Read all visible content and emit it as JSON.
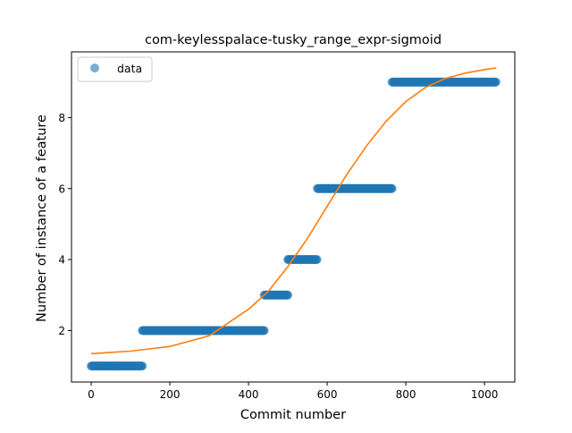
{
  "chart_data": {
    "type": "scatter",
    "title": "com-keylesspalace-tusky_range_expr-sigmoid",
    "xlabel": "Commit number",
    "ylabel": "Number of instance of a feature",
    "xlim": [
      -50,
      1077
    ],
    "ylim": [
      0.55,
      9.85
    ],
    "x_ticks": [
      0,
      200,
      400,
      600,
      800,
      1000
    ],
    "y_ticks": [
      2,
      4,
      6,
      8
    ],
    "grid": false,
    "legend": {
      "placement": "top-left",
      "entries": [
        "data"
      ]
    },
    "series": [
      {
        "name": "data",
        "kind": "scatter",
        "color": "#1f77b4",
        "segments": [
          {
            "x_start": 0,
            "x_end": 130,
            "y": 1
          },
          {
            "x_start": 130,
            "x_end": 440,
            "y": 2
          },
          {
            "x_start": 440,
            "x_end": 500,
            "y": 3
          },
          {
            "x_start": 500,
            "x_end": 575,
            "y": 4
          },
          {
            "x_start": 575,
            "x_end": 765,
            "y": 6
          },
          {
            "x_start": 765,
            "x_end": 1030,
            "y": 9
          }
        ]
      },
      {
        "kind": "line",
        "color": "#ff7f0e",
        "x": [
          0,
          100,
          200,
          300,
          400,
          450,
          500,
          550,
          600,
          650,
          700,
          750,
          800,
          850,
          900,
          950,
          1000,
          1030
        ],
        "y": [
          1.35,
          1.42,
          1.55,
          1.85,
          2.6,
          3.1,
          3.8,
          4.6,
          5.5,
          6.4,
          7.2,
          7.9,
          8.45,
          8.85,
          9.1,
          9.25,
          9.35,
          9.4
        ]
      }
    ]
  }
}
